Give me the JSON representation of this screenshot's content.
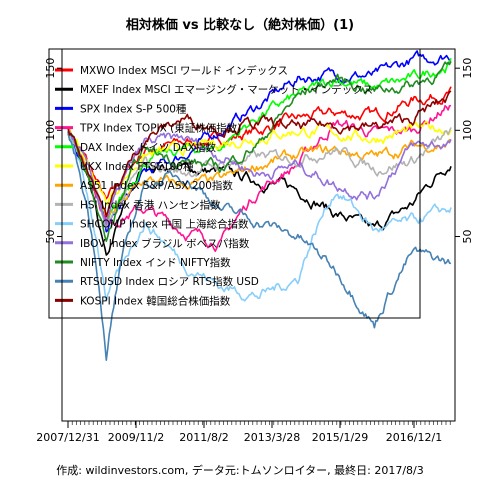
{
  "page": {
    "title": "相対株価 vs 比較なし（絶対株価）(1)",
    "caption": "作成: wildinvestors.com, データ元:トムソンロイター, 最終日: 2017/8/3"
  },
  "chart_data": {
    "type": "line",
    "title": "相対株価 vs 比較なし（絶対株価）(1)",
    "xlabel": "",
    "ylabel": "",
    "x_tick_labels": [
      "2007/12/31",
      "2009/11/2",
      "2011/8/2",
      "2013/3/28",
      "2015/1/29",
      "2016/12/1"
    ],
    "y_ticks": [
      50,
      100,
      150
    ],
    "ylim": [
      15,
      170
    ],
    "y_scale": "log",
    "grid": false,
    "legend_position": "top-left",
    "series": [
      {
        "name": "MXWO Index MSCI ワールド インデックス",
        "color": "#ff0000",
        "values": [
          100,
          62,
          88,
          92,
          94,
          100,
          108,
          112,
          110,
          122,
          128
        ]
      },
      {
        "name": "MXEF Index MSCI エマージング・マーケット・インデックス",
        "color": "#000000",
        "values": [
          100,
          42,
          80,
          78,
          76,
          72,
          68,
          58,
          52,
          62,
          82
        ]
      },
      {
        "name": "SPX Index S-P 500種",
        "color": "#0000ff",
        "values": [
          100,
          52,
          75,
          85,
          100,
          118,
          140,
          145,
          142,
          158,
          164
        ]
      },
      {
        "name": "TPX Index TOPIX (東証株価指数)",
        "color": "#ff1493",
        "values": [
          100,
          55,
          60,
          52,
          48,
          68,
          80,
          105,
          98,
          100,
          118
        ]
      },
      {
        "name": "DAX Index ドイツ DAX指数",
        "color": "#00ff00",
        "values": [
          100,
          52,
          82,
          88,
          90,
          110,
          125,
          140,
          132,
          140,
          155
        ]
      },
      {
        "name": "UKX Index FTSE100種",
        "color": "#ffff00",
        "values": [
          100,
          62,
          85,
          88,
          92,
          96,
          100,
          98,
          95,
          100,
          102
        ]
      },
      {
        "name": "AS51 Index S&P/ASX 200指数",
        "color": "#ffa500",
        "values": [
          100,
          55,
          72,
          70,
          72,
          80,
          85,
          88,
          84,
          90,
          92
        ]
      },
      {
        "name": "HSI Index 香港 ハンセン指数",
        "color": "#b3b3b3",
        "values": [
          100,
          52,
          80,
          76,
          80,
          84,
          84,
          88,
          78,
          82,
          98
        ]
      },
      {
        "name": "SHCOMP Index 中国 上海総合指数",
        "color": "#87cefa",
        "values": [
          100,
          32,
          55,
          42,
          36,
          34,
          38,
          68,
          52,
          55,
          60
        ]
      },
      {
        "name": "IBOV Index ブラジル ボベスパ指数",
        "color": "#9370db",
        "values": [
          100,
          55,
          92,
          95,
          85,
          75,
          80,
          70,
          65,
          90,
          92
        ]
      },
      {
        "name": "NIFTY Index インド NIFTY指数",
        "color": "#228b22",
        "values": [
          100,
          48,
          88,
          82,
          78,
          92,
          125,
          140,
          130,
          135,
          150
        ]
      },
      {
        "name": "RTSUSD Index ロシア RTS指数 USD",
        "color": "#4682b4",
        "values": [
          100,
          22,
          70,
          75,
          60,
          55,
          50,
          40,
          28,
          45,
          42
        ]
      },
      {
        "name": "KOSPI Index 韓国総合株価指数",
        "color": "#8b0000",
        "values": [
          100,
          58,
          95,
          108,
          102,
          105,
          102,
          104,
          102,
          108,
          125
        ]
      }
    ]
  }
}
